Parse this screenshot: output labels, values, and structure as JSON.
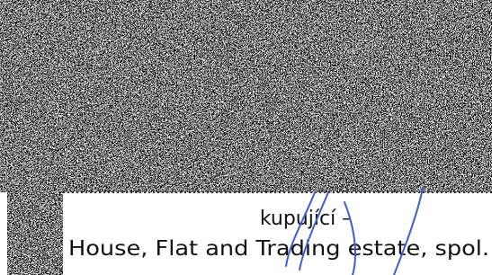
{
  "document": {
    "lines": [
      "kupující –",
      "House, Flat and Trading estate, spol."
    ]
  }
}
